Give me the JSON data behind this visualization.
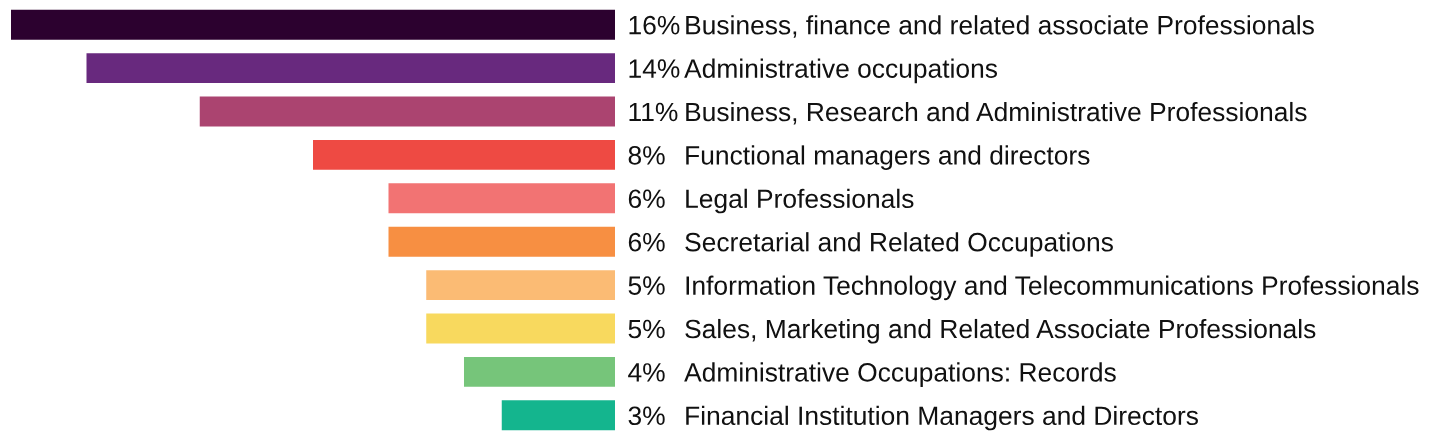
{
  "chart_data": {
    "type": "bar",
    "orientation": "horizontal",
    "categories": [
      "Business, finance and related associate Professionals",
      "Administrative occupations",
      "Business, Research and Administrative Professionals",
      "Functional managers and directors",
      "Legal Professionals",
      "Secretarial and Related Occupations",
      "Information Technology and Telecommunications Professionals",
      "Sales, Marketing and Related Associate Professionals",
      "Administrative Occupations: Records",
      "Financial Institution Managers and Directors"
    ],
    "values": [
      16,
      14,
      11,
      8,
      6,
      6,
      5,
      5,
      4,
      3
    ],
    "value_labels": [
      "16%",
      "14%",
      "11%",
      "8%",
      "6%",
      "6%",
      "5%",
      "5%",
      "4%",
      "3%"
    ],
    "colors": [
      "#2c012f",
      "#68297e",
      "#ab4470",
      "#ee4a43",
      "#f27373",
      "#f78f42",
      "#fbbb74",
      "#f8d95e",
      "#76c57a",
      "#14b58e"
    ],
    "xlim": [
      16,
      0
    ],
    "tick_labels": "y"
  }
}
